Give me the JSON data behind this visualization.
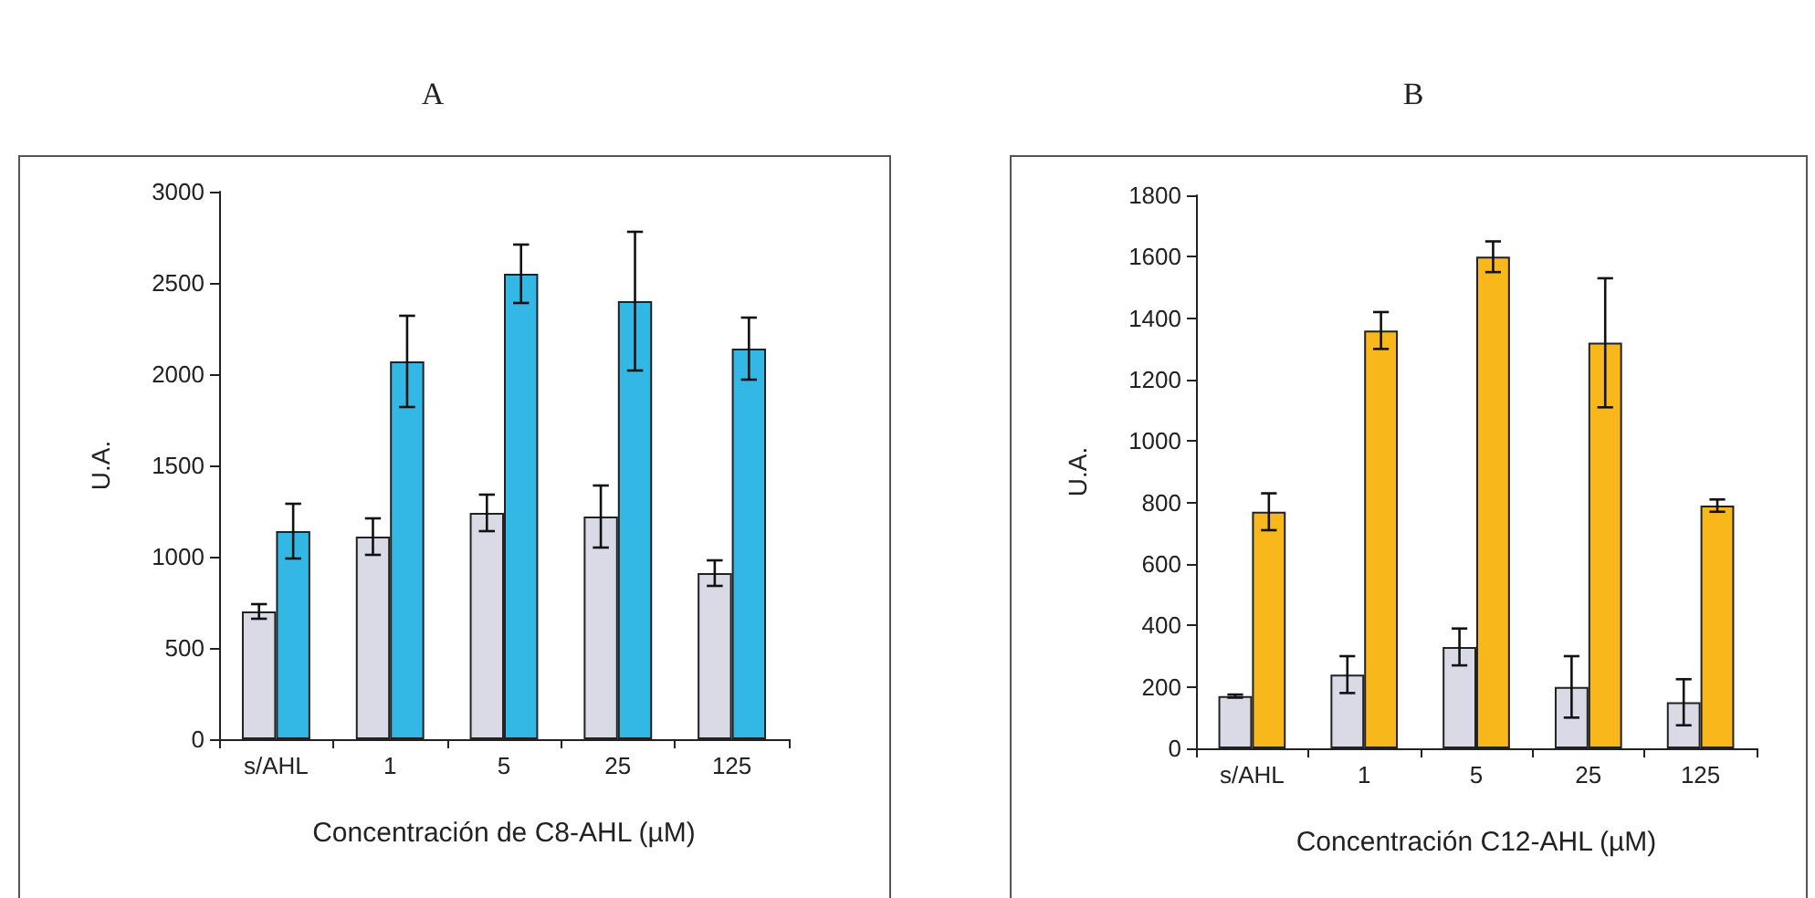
{
  "chart_data": [
    {
      "type": "bar",
      "title": "A",
      "xlabel": "Concentración de C8-AHL (µM)",
      "ylabel": "U.A.",
      "categories": [
        "s/AHL",
        "1",
        "5",
        "25",
        "125"
      ],
      "ylim": [
        0,
        3000
      ],
      "yticks": [
        0,
        500,
        1000,
        1500,
        2000,
        2500,
        3000
      ],
      "grid": false,
      "series": [
        {
          "color": "#d9dae6",
          "values": [
            700,
            1110,
            1240,
            1220,
            910
          ],
          "errors": [
            40,
            100,
            100,
            170,
            70
          ]
        },
        {
          "color": "#33b8e6",
          "values": [
            1140,
            2070,
            2550,
            2400,
            2140
          ],
          "errors": [
            150,
            250,
            160,
            380,
            170
          ]
        }
      ]
    },
    {
      "type": "bar",
      "title": "B",
      "xlabel": "Concentración C12-AHL (µM)",
      "ylabel": "U.A.",
      "categories": [
        "s/AHL",
        "1",
        "5",
        "25",
        "125"
      ],
      "ylim": [
        0,
        1800
      ],
      "yticks": [
        0,
        200,
        400,
        600,
        800,
        1000,
        1200,
        1400,
        1600,
        1800
      ],
      "grid": false,
      "series": [
        {
          "color": "#d9dae6",
          "values": [
            170,
            240,
            330,
            200,
            150
          ],
          "errors": [
            5,
            60,
            60,
            100,
            75
          ]
        },
        {
          "color": "#f8b81c",
          "values": [
            770,
            1360,
            1600,
            1320,
            790
          ],
          "errors": [
            60,
            60,
            50,
            210,
            20
          ]
        }
      ]
    }
  ]
}
